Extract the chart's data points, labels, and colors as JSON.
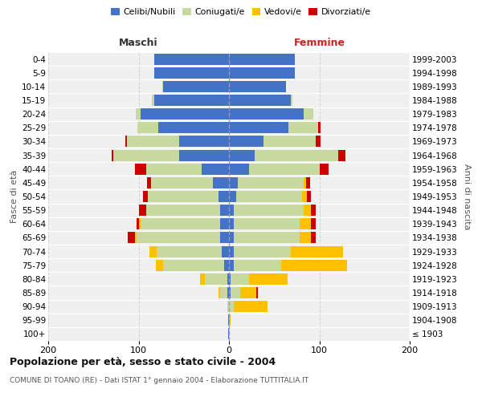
{
  "age_groups": [
    "100+",
    "95-99",
    "90-94",
    "85-89",
    "80-84",
    "75-79",
    "70-74",
    "65-69",
    "60-64",
    "55-59",
    "50-54",
    "45-49",
    "40-44",
    "35-39",
    "30-34",
    "25-29",
    "20-24",
    "15-19",
    "10-14",
    "5-9",
    "0-4"
  ],
  "birth_years": [
    "≤ 1903",
    "1904-1908",
    "1909-1913",
    "1914-1918",
    "1919-1923",
    "1924-1928",
    "1929-1933",
    "1934-1938",
    "1939-1943",
    "1944-1948",
    "1949-1953",
    "1954-1958",
    "1959-1963",
    "1964-1968",
    "1969-1973",
    "1974-1978",
    "1979-1983",
    "1984-1988",
    "1989-1993",
    "1994-1998",
    "1999-2003"
  ],
  "maschi_celibi": [
    1,
    1,
    0,
    2,
    2,
    5,
    8,
    10,
    10,
    10,
    12,
    18,
    30,
    55,
    55,
    78,
    98,
    83,
    73,
    83,
    83
  ],
  "maschi_coniugati": [
    0,
    0,
    2,
    8,
    25,
    68,
    72,
    92,
    88,
    82,
    78,
    68,
    62,
    73,
    58,
    23,
    5,
    2,
    1,
    0,
    0
  ],
  "maschi_vedovi": [
    0,
    0,
    0,
    2,
    5,
    8,
    8,
    2,
    2,
    0,
    0,
    0,
    0,
    0,
    0,
    0,
    0,
    0,
    0,
    0,
    0
  ],
  "maschi_divorziati": [
    0,
    0,
    0,
    0,
    0,
    0,
    0,
    8,
    2,
    8,
    5,
    5,
    12,
    2,
    2,
    0,
    0,
    0,
    0,
    0,
    0
  ],
  "femmine_nubili": [
    0,
    0,
    0,
    2,
    2,
    5,
    5,
    5,
    5,
    5,
    8,
    10,
    22,
    28,
    38,
    66,
    83,
    68,
    63,
    73,
    73
  ],
  "femmine_coniugate": [
    0,
    0,
    5,
    10,
    20,
    53,
    63,
    73,
    73,
    78,
    73,
    73,
    78,
    93,
    58,
    33,
    10,
    2,
    0,
    0,
    0
  ],
  "femmine_vedove": [
    0,
    2,
    38,
    18,
    43,
    73,
    58,
    13,
    13,
    8,
    5,
    2,
    0,
    0,
    0,
    0,
    0,
    0,
    0,
    0,
    0
  ],
  "femmine_divorziate": [
    0,
    0,
    0,
    2,
    0,
    0,
    0,
    5,
    5,
    5,
    5,
    5,
    10,
    8,
    5,
    2,
    0,
    0,
    0,
    0,
    0
  ],
  "color_celibi": "#4472c4",
  "color_coniugati": "#c8d9a0",
  "color_vedovi": "#ffc000",
  "color_divorziati": "#cc0000",
  "title": "Popolazione per età, sesso e stato civile - 2004",
  "subtitle": "COMUNE DI TOANO (RE) - Dati ISTAT 1° gennaio 2004 - Elaborazione TUTTITALIA.IT",
  "legend_labels": [
    "Celibi/Nubili",
    "Coniugati/e",
    "Vedovi/e",
    "Divorziati/e"
  ],
  "maschi_label": "Maschi",
  "femmine_label": "Femmine",
  "ylabel_left": "Fasce di età",
  "ylabel_right": "Anni di nascita",
  "xlim": 200,
  "bg_color": "#ffffff",
  "plot_bg": "#f0f0f0",
  "grid_color": "#cccccc"
}
